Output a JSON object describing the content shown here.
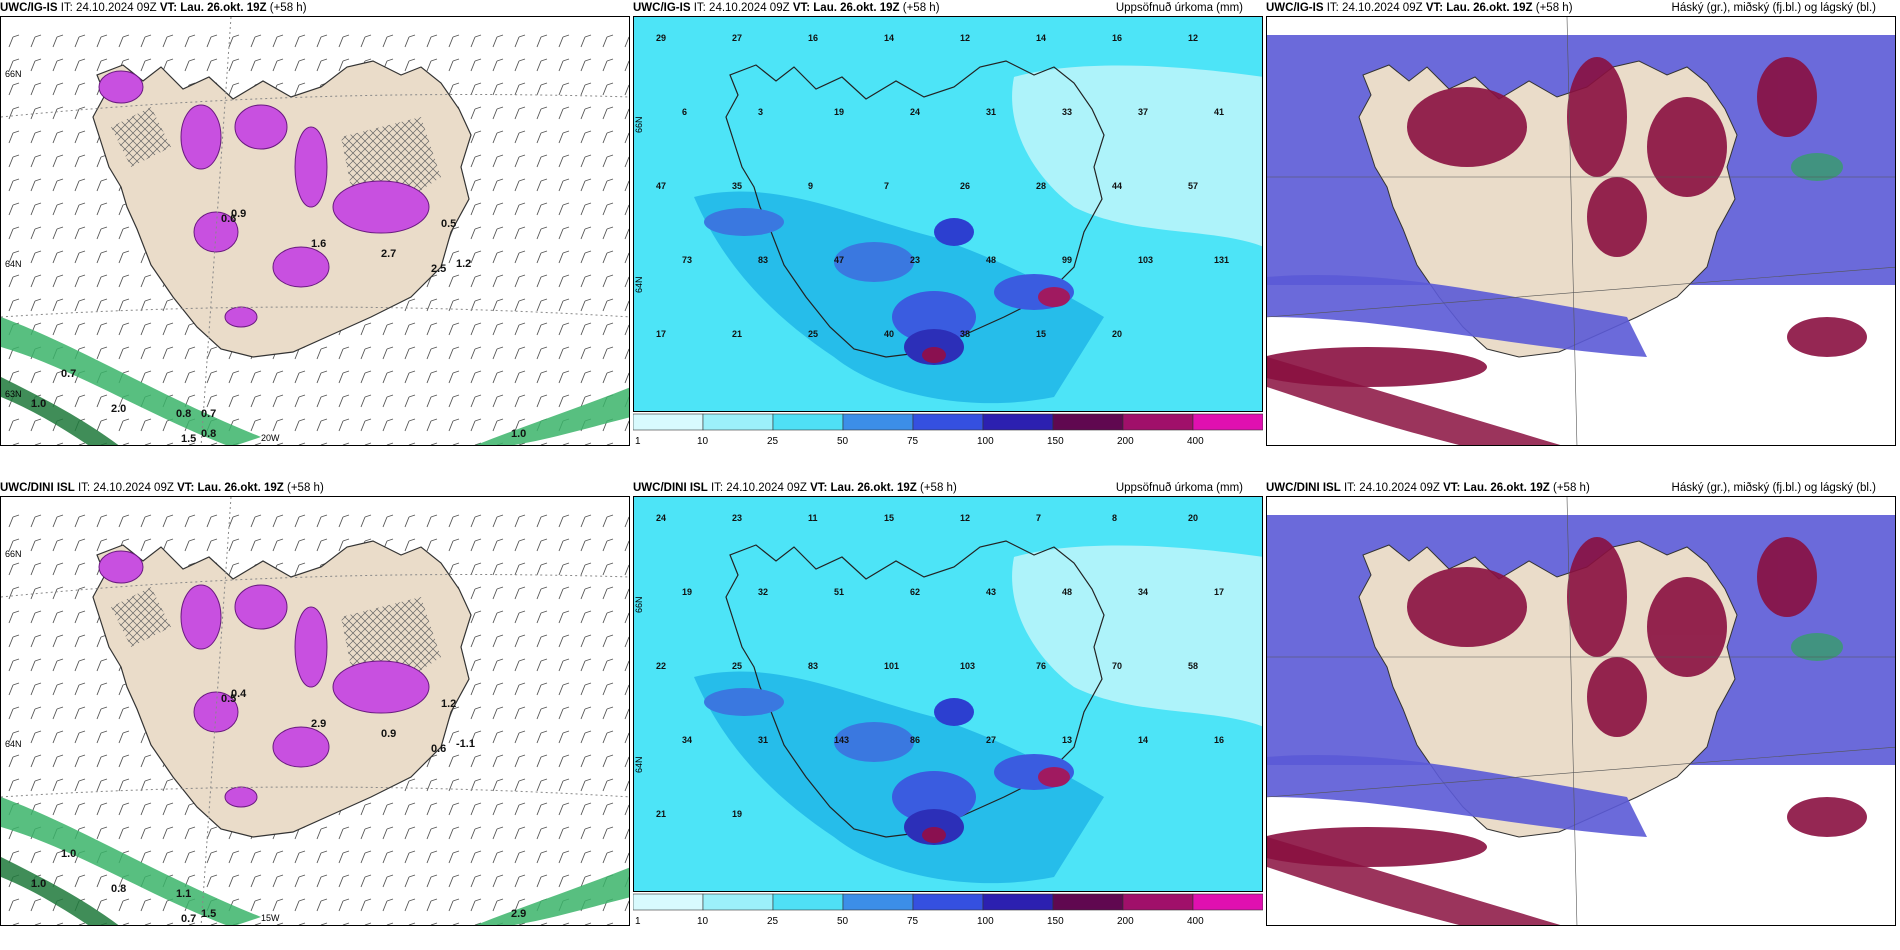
{
  "colors": {
    "land": "#eadcc9",
    "ocean_precip_base": "#33e5f5",
    "wind_green": "#3bb46a",
    "precip_magenta": "#c850e0",
    "cloud_high": "#8a1040",
    "cloud_mid": "#5b5ad6",
    "cloud_low": "#3a9a70"
  },
  "panels": [
    {
      "id": "igis-wind",
      "model": "UWC/IG-IS",
      "it_label": "IT:",
      "it_value": "24.10.2024 09Z",
      "vt_label": "VT:",
      "vt_value": "Lau. 26.okt. 19Z",
      "lead": "(+58 h)",
      "product": "",
      "map_labels": [
        "20W",
        "66N",
        "64N",
        "63N"
      ],
      "values": [
        "0.7",
        "0.6",
        "1.6",
        "2.7",
        "2.5",
        "0.5",
        "1.2",
        "0.9",
        "1.0",
        "2.0",
        "0.8",
        "1.5",
        "1.0",
        "0.8",
        "0.7"
      ]
    },
    {
      "id": "igis-precip",
      "model": "UWC/IG-IS",
      "it_label": "IT:",
      "it_value": "24.10.2024 09Z",
      "vt_label": "VT:",
      "vt_value": "Lau. 26.okt. 19Z",
      "lead": "(+58 h)",
      "product": "Uppsöfnuð úrkoma (mm)",
      "map_labels": [
        "66N",
        "64N"
      ],
      "values": [
        "29",
        "27",
        "16",
        "14",
        "12",
        "14",
        "16",
        "12",
        "6",
        "3",
        "19",
        "24",
        "31",
        "33",
        "37",
        "41",
        "47",
        "35",
        "9",
        "7",
        "26",
        "28",
        "44",
        "57",
        "73",
        "83",
        "47",
        "23",
        "48",
        "99",
        "103",
        "131",
        "17",
        "21",
        "25",
        "40",
        "38",
        "15",
        "20"
      ],
      "colorbar": [
        "1",
        "10",
        "25",
        "50",
        "75",
        "100",
        "150",
        "200",
        "400"
      ]
    },
    {
      "id": "igis-cloud",
      "model": "UWC/IG-IS",
      "it_label": "IT:",
      "it_value": "24.10.2024 09Z",
      "vt_label": "VT:",
      "vt_value": "Lau. 26.okt. 19Z",
      "lead": "(+58 h)",
      "product": "Háský (gr.), miðský (fj.bl.) og lágský (bl.)"
    },
    {
      "id": "dini-wind",
      "model": "UWC/DINI ISL",
      "it_label": "IT:",
      "it_value": "24.10.2024 09Z",
      "vt_label": "VT:",
      "vt_value": "Lau. 26.okt. 19Z",
      "lead": "(+58 h)",
      "product": "",
      "map_labels": [
        "15W",
        "66N",
        "64N"
      ],
      "values": [
        "1.0",
        "0.5",
        "2.9",
        "0.9",
        "0.6",
        "1.2",
        "-1.1",
        "0.4",
        "1.0",
        "0.8",
        "1.5",
        "0.7",
        "2.9",
        "1.1"
      ]
    },
    {
      "id": "dini-precip",
      "model": "UWC/DINI ISL",
      "it_label": "IT:",
      "it_value": "24.10.2024 09Z",
      "vt_label": "VT:",
      "vt_value": "Lau. 26.okt. 19Z",
      "lead": "(+58 h)",
      "product": "Uppsöfnuð úrkoma (mm)",
      "map_labels": [
        "66N",
        "64N"
      ],
      "values": [
        "24",
        "23",
        "11",
        "15",
        "12",
        "7",
        "8",
        "20",
        "19",
        "32",
        "51",
        "62",
        "43",
        "48",
        "34",
        "17",
        "22",
        "25",
        "83",
        "101",
        "103",
        "76",
        "70",
        "58",
        "34",
        "31",
        "143",
        "86",
        "27",
        "13",
        "14",
        "16",
        "21",
        "19"
      ],
      "colorbar": [
        "1",
        "10",
        "25",
        "50",
        "75",
        "100",
        "150",
        "200",
        "400"
      ]
    },
    {
      "id": "dini-cloud",
      "model": "UWC/DINI ISL",
      "it_label": "IT:",
      "it_value": "24.10.2024 09Z",
      "vt_label": "VT:",
      "vt_value": "Lau. 26.okt. 19Z",
      "lead": "(+58 h)",
      "product": "Háský (gr.), miðský (fj.bl.) og lágský (bl.)"
    }
  ]
}
